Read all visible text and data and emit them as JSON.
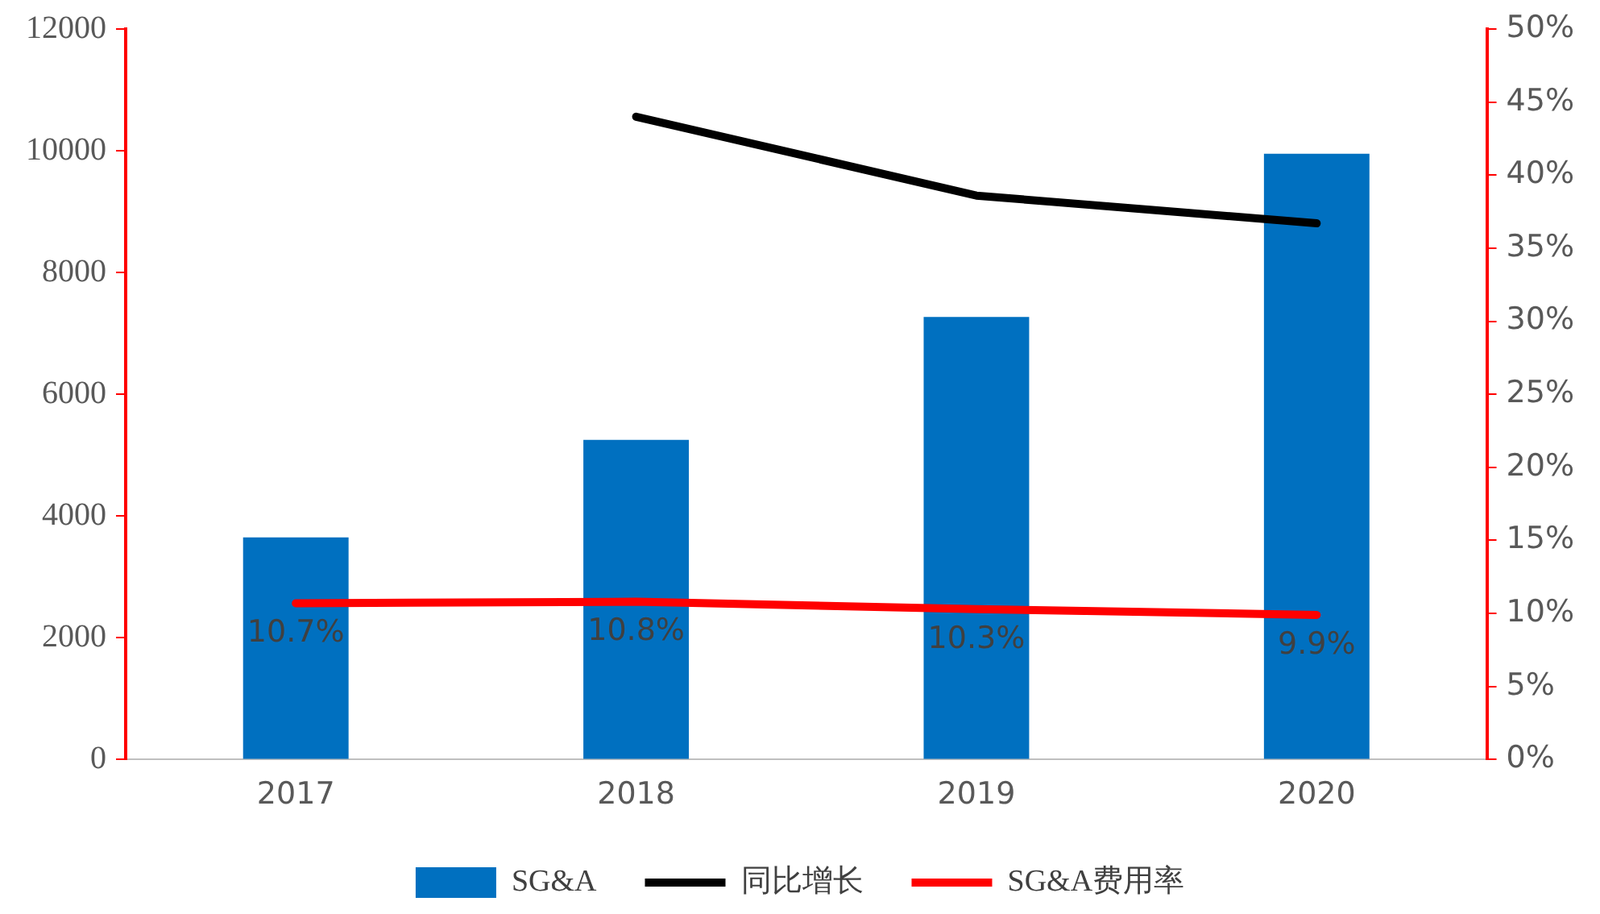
{
  "chart_data": {
    "type": "bar",
    "categories": [
      "2017",
      "2018",
      "2019",
      "2020"
    ],
    "series": [
      {
        "name": "SG&A",
        "color": "#0070c0",
        "values": [
          3650,
          5250,
          7270,
          9950
        ]
      },
      {
        "name": "同比增长",
        "type": "line",
        "axis": "y2",
        "color": "#000000",
        "values": [
          null,
          44,
          38.6,
          36.7
        ]
      },
      {
        "name": "SG&A费用率",
        "type": "line",
        "axis": "y2",
        "color": "#ff0000",
        "values": [
          10.7,
          10.8,
          10.3,
          9.9
        ],
        "value_labels": [
          "10.7%",
          "10.8%",
          "10.3%",
          "9.9%"
        ]
      }
    ],
    "ylim": [
      0,
      12000
    ],
    "yticks": [
      0,
      2000,
      4000,
      6000,
      8000,
      10000,
      12000
    ],
    "y2lim": [
      0,
      50
    ],
    "y2ticks": [
      {
        "value": 0,
        "label": "0%"
      },
      {
        "value": 5,
        "label": "5%"
      },
      {
        "value": 10,
        "label": "10%"
      },
      {
        "value": 15,
        "label": "15%"
      },
      {
        "value": 20,
        "label": "20%"
      },
      {
        "value": 25,
        "label": "25%"
      },
      {
        "value": 30,
        "label": "30%"
      },
      {
        "value": 35,
        "label": "35%"
      },
      {
        "value": 40,
        "label": "40%"
      },
      {
        "value": 45,
        "label": "45%"
      },
      {
        "value": 50,
        "label": "50%"
      }
    ],
    "grid": false,
    "legend": "bottom",
    "marker": "none"
  }
}
